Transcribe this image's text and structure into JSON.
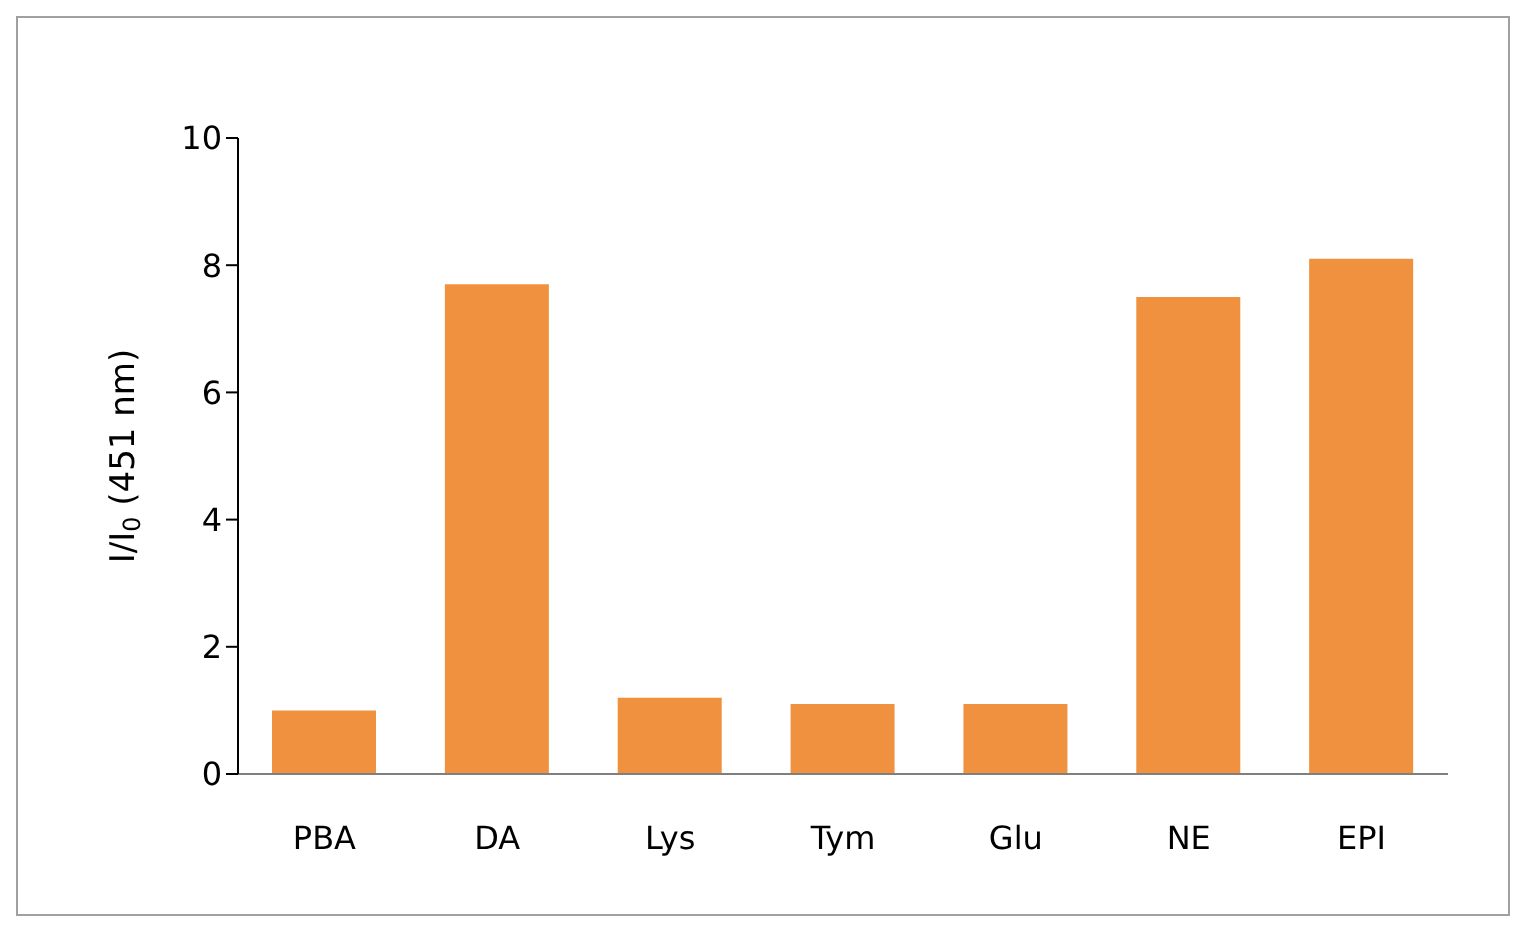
{
  "chart_data": {
    "type": "bar",
    "ylabel": "I/I$_{0}$ (451 nm)",
    "categories": [
      "PBA",
      "DA",
      "Lys",
      "Tym",
      "Glu",
      "NE",
      "EPI"
    ],
    "values": [
      1.0,
      7.7,
      1.2,
      1.1,
      1.1,
      7.5,
      8.1
    ],
    "color": "#f0913f",
    "ylim": [
      0,
      10
    ],
    "yticks": [
      0,
      2,
      4,
      6,
      8,
      10
    ],
    "grid": false,
    "legend": false
  }
}
